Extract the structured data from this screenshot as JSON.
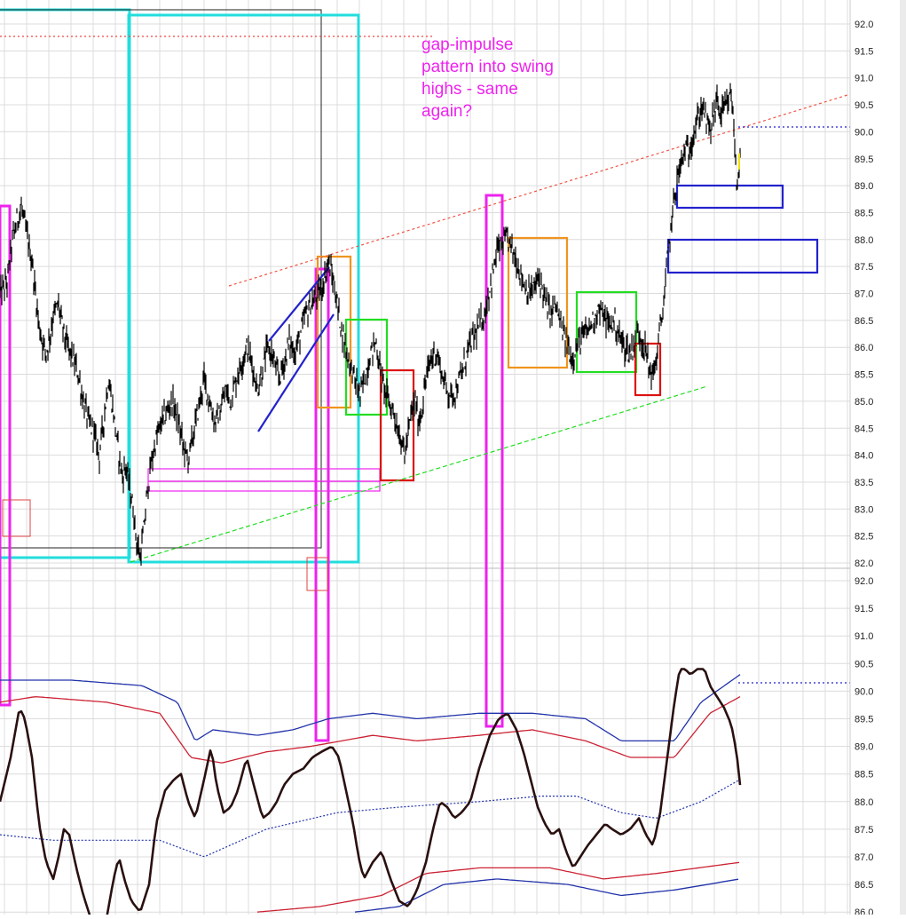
{
  "chart_data": [
    {
      "type": "line",
      "panel": "price",
      "ylim": [
        82.0,
        92.0
      ],
      "yticks": [
        "92.0",
        "91.5",
        "91.0",
        "90.5",
        "90.0",
        "89.5",
        "89.0",
        "88.5",
        "88.0",
        "87.5",
        "87.0",
        "86.5",
        "86.0",
        "85.5",
        "85.0",
        "84.5",
        "84.0",
        "83.5",
        "83.0",
        "82.5",
        "82.0"
      ],
      "annotation": "gap-impulse\npattern into swing\nhighs - same\nagain?",
      "price_path": [
        [
          0,
          87.0
        ],
        [
          8,
          87.2
        ],
        [
          14,
          88.0
        ],
        [
          20,
          88.4
        ],
        [
          24,
          88.6
        ],
        [
          30,
          88.1
        ],
        [
          36,
          87.6
        ],
        [
          40,
          87.0
        ],
        [
          44,
          86.4
        ],
        [
          48,
          86.1
        ],
        [
          52,
          85.9
        ],
        [
          56,
          86.2
        ],
        [
          60,
          86.6
        ],
        [
          66,
          86.8
        ],
        [
          70,
          86.4
        ],
        [
          76,
          86.0
        ],
        [
          82,
          85.8
        ],
        [
          88,
          85.5
        ],
        [
          94,
          85.0
        ],
        [
          100,
          84.6
        ],
        [
          106,
          84.4
        ],
        [
          112,
          84.0
        ],
        [
          118,
          84.8
        ],
        [
          122,
          85.4
        ],
        [
          126,
          85.0
        ],
        [
          130,
          84.5
        ],
        [
          134,
          84.0
        ],
        [
          138,
          83.6
        ],
        [
          142,
          83.8
        ],
        [
          146,
          83.4
        ],
        [
          150,
          83.0
        ],
        [
          154,
          82.4
        ],
        [
          158,
          82.1
        ],
        [
          162,
          82.6
        ],
        [
          166,
          83.3
        ],
        [
          170,
          83.8
        ],
        [
          176,
          84.3
        ],
        [
          182,
          84.6
        ],
        [
          188,
          84.8
        ],
        [
          194,
          85.0
        ],
        [
          200,
          84.7
        ],
        [
          206,
          84.2
        ],
        [
          212,
          83.9
        ],
        [
          218,
          84.4
        ],
        [
          224,
          84.9
        ],
        [
          230,
          85.4
        ],
        [
          236,
          85.0
        ],
        [
          242,
          84.6
        ],
        [
          248,
          84.8
        ],
        [
          254,
          85.2
        ],
        [
          260,
          85.0
        ],
        [
          266,
          85.4
        ],
        [
          272,
          85.7
        ],
        [
          278,
          86.0
        ],
        [
          284,
          85.7
        ],
        [
          290,
          85.2
        ],
        [
          296,
          85.6
        ],
        [
          302,
          86.0
        ],
        [
          308,
          85.8
        ],
        [
          314,
          85.4
        ],
        [
          320,
          85.7
        ],
        [
          326,
          86.1
        ],
        [
          332,
          85.9
        ],
        [
          338,
          86.2
        ],
        [
          344,
          86.6
        ],
        [
          350,
          86.8
        ],
        [
          356,
          86.9
        ],
        [
          362,
          87.1
        ],
        [
          366,
          87.3
        ],
        [
          370,
          87.6
        ],
        [
          376,
          87.2
        ],
        [
          382,
          86.6
        ],
        [
          388,
          86.1
        ],
        [
          394,
          85.7
        ],
        [
          400,
          85.4
        ],
        [
          406,
          85.1
        ],
        [
          412,
          85.5
        ],
        [
          418,
          85.9
        ],
        [
          424,
          86.1
        ],
        [
          428,
          85.6
        ],
        [
          432,
          85.3
        ],
        [
          436,
          85.1
        ],
        [
          440,
          84.9
        ],
        [
          444,
          84.8
        ],
        [
          448,
          84.5
        ],
        [
          452,
          84.3
        ],
        [
          456,
          84.0
        ],
        [
          460,
          84.4
        ],
        [
          464,
          84.8
        ],
        [
          468,
          85.0
        ],
        [
          472,
          84.6
        ],
        [
          476,
          84.9
        ],
        [
          480,
          85.4
        ],
        [
          486,
          85.8
        ],
        [
          492,
          85.9
        ],
        [
          498,
          85.5
        ],
        [
          504,
          85.2
        ],
        [
          510,
          85.1
        ],
        [
          516,
          85.3
        ],
        [
          522,
          85.6
        ],
        [
          528,
          86.0
        ],
        [
          534,
          86.2
        ],
        [
          540,
          86.4
        ],
        [
          546,
          86.6
        ],
        [
          552,
          87.1
        ],
        [
          556,
          87.4
        ],
        [
          560,
          87.8
        ],
        [
          566,
          87.9
        ],
        [
          572,
          88.0
        ],
        [
          578,
          87.8
        ],
        [
          584,
          87.5
        ],
        [
          590,
          87.2
        ],
        [
          596,
          87.0
        ],
        [
          602,
          87.1
        ],
        [
          608,
          87.3
        ],
        [
          614,
          86.9
        ],
        [
          620,
          86.6
        ],
        [
          626,
          86.8
        ],
        [
          632,
          86.4
        ],
        [
          638,
          86.1
        ],
        [
          644,
          85.8
        ],
        [
          650,
          86.0
        ],
        [
          656,
          86.2
        ],
        [
          662,
          86.3
        ],
        [
          668,
          86.5
        ],
        [
          674,
          86.7
        ],
        [
          680,
          86.6
        ],
        [
          686,
          86.4
        ],
        [
          692,
          86.5
        ],
        [
          698,
          86.2
        ],
        [
          704,
          86.0
        ],
        [
          710,
          85.9
        ],
        [
          716,
          86.1
        ],
        [
          720,
          86.3
        ],
        [
          724,
          86.1
        ],
        [
          728,
          85.9
        ],
        [
          732,
          85.6
        ],
        [
          736,
          85.5
        ],
        [
          740,
          85.8
        ],
        [
          744,
          86.4
        ],
        [
          748,
          86.8
        ],
        [
          752,
          87.6
        ],
        [
          756,
          88.2
        ],
        [
          760,
          88.8
        ],
        [
          764,
          89.2
        ],
        [
          768,
          89.4
        ],
        [
          772,
          89.7
        ],
        [
          776,
          89.6
        ],
        [
          780,
          89.9
        ],
        [
          784,
          90.1
        ],
        [
          788,
          90.3
        ],
        [
          792,
          90.5
        ],
        [
          796,
          90.2
        ],
        [
          800,
          90.0
        ],
        [
          804,
          90.3
        ],
        [
          808,
          90.6
        ],
        [
          812,
          90.3
        ],
        [
          816,
          90.4
        ],
        [
          820,
          90.5
        ],
        [
          824,
          90.7
        ],
        [
          827,
          90.1
        ],
        [
          830,
          89.0
        ],
        [
          834,
          89.5
        ]
      ]
    },
    {
      "type": "line",
      "panel": "oscillator",
      "ylim": [
        86.0,
        92.0
      ],
      "yticks": [
        "92.0",
        "91.5",
        "91.0",
        "90.5",
        "90.0",
        "89.5",
        "89.0",
        "88.5",
        "88.0",
        "87.5",
        "87.0",
        "86.5",
        "86.0"
      ]
    }
  ],
  "colors": {
    "price": "#000000",
    "grid": "#dcdcdc",
    "magenta": "#ee22ee",
    "cyan": "#22dddd",
    "orange": "#f0941e",
    "green": "#22dd22",
    "red": "#dd1111",
    "blue": "#2222cc",
    "dark_red": "#cc2233",
    "navy": "#2233aa"
  }
}
